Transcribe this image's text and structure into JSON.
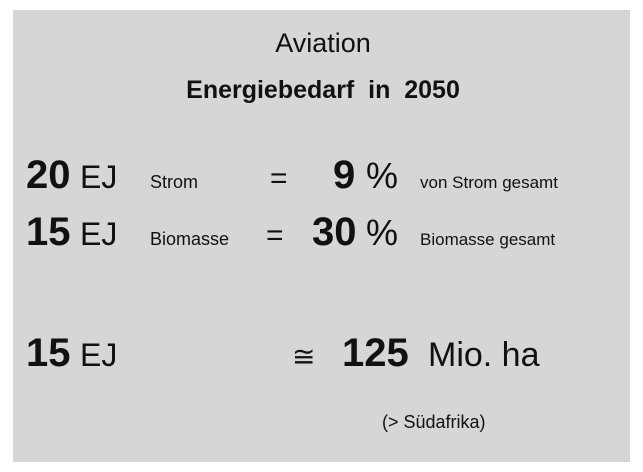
{
  "title": "Aviation",
  "subtitle": "Energiebedarf  in  2050",
  "rows": [
    {
      "amount": 20,
      "unit": "EJ",
      "label": "Strom",
      "relation": "=",
      "share": 9,
      "share_unit": "%",
      "note": "von Strom gesamt"
    },
    {
      "amount": 15,
      "unit": "EJ",
      "label": "Biomasse",
      "relation": "=",
      "share": 30,
      "share_unit": "%",
      "note": "Biomasse gesamt"
    }
  ],
  "land": {
    "amount": 15,
    "unit": "EJ",
    "relation": "≅",
    "area": 125,
    "area_unit": "Mio. ha",
    "note": "(> Südafrika)"
  }
}
